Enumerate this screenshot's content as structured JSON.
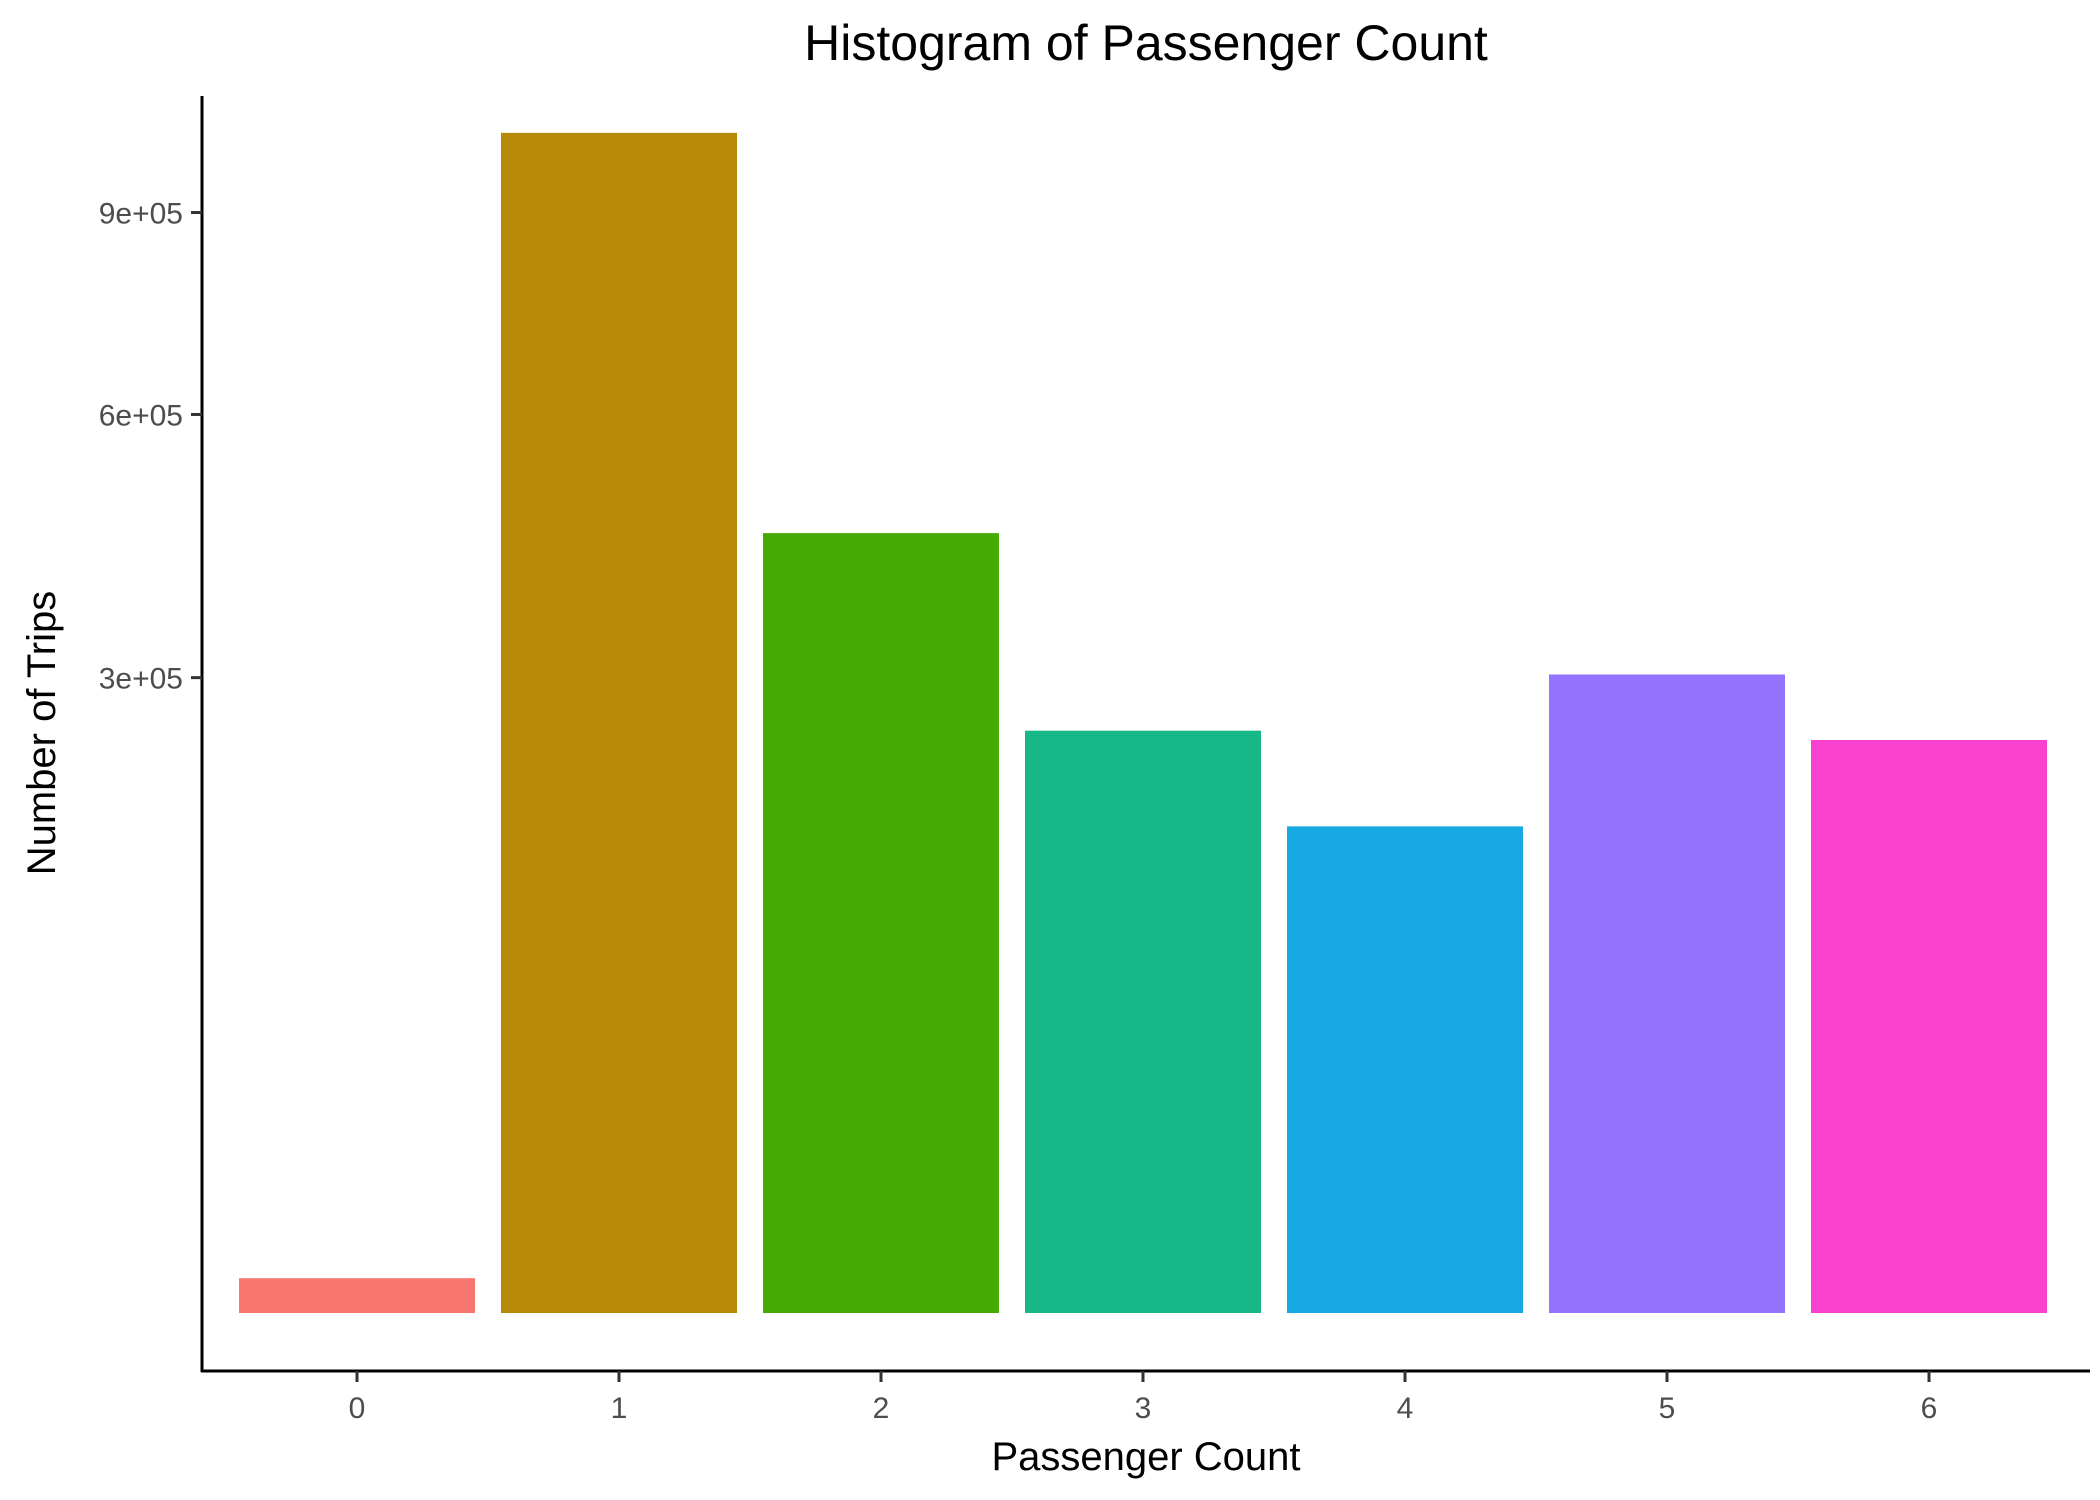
{
  "chart_data": {
    "type": "bar",
    "title": "Histogram of Passenger Count",
    "xlabel": "Passenger Count",
    "ylabel": "Number of Trips",
    "categories": [
      "0",
      "1",
      "2",
      "3",
      "4",
      "5",
      "6"
    ],
    "values": [
      900,
      1035000,
      452000,
      252000,
      176000,
      303000,
      244000
    ],
    "colors": [
      "#F8766D",
      "#B79F00",
      "#00BA38",
      "#00BFC4",
      "#619CFF",
      "#F564E3",
      "#F564E3"
    ],
    "bar_colors": [
      "#F8766D",
      "#B68A06",
      "#45AA03",
      "#18B788",
      "#18A9E4",
      "#9673FE",
      "#F842CF"
    ],
    "yticks": [
      300000,
      600000,
      900000
    ],
    "ytick_labels": [
      "3e+05",
      "6e+05",
      "9e+05"
    ],
    "y_scale": "sqrt",
    "ylim": [
      0,
      1130000
    ],
    "grid": false,
    "legend": "none"
  }
}
